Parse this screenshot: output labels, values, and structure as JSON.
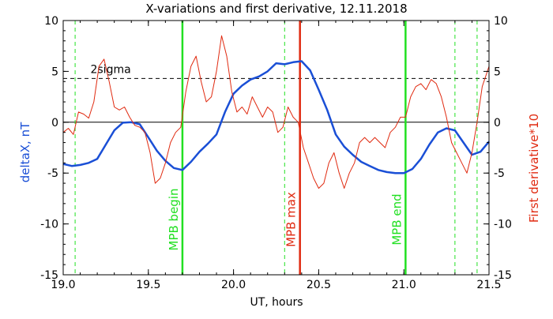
{
  "chart_data": {
    "type": "line",
    "title": "X-variations and first derivative, 12.11.2018",
    "xlabel": "UT, hours",
    "ylabel_left": "deltaX, nT",
    "ylabel_right": "First derivative*10",
    "xlim": [
      19.0,
      21.5
    ],
    "ylim": [
      -15,
      10
    ],
    "x_ticks": [
      "19.0",
      "19.5",
      "20.0",
      "20.5",
      "21.0",
      "21.5"
    ],
    "y_ticks": [
      "-15",
      "-10",
      "-5",
      "0",
      "5",
      "10"
    ],
    "grid": false,
    "colors": {
      "deltaX": "#1a4fd6",
      "derivative": "#e02a10",
      "mpb": "#22e022",
      "mpb_max": "#e02a10",
      "zero": "#000000",
      "sigma": "#000000",
      "ylabel_left": "#1a4fd6",
      "ylabel_right": "#e02a10"
    },
    "sigma_label": "2sigma",
    "sigma_level": 4.3,
    "zero_level": 0,
    "vertical_lines": [
      {
        "x": 19.7,
        "label": "MPB begin",
        "style": "solid",
        "color": "#22e022"
      },
      {
        "x": 20.39,
        "label": "MPB max",
        "style": "solid",
        "color": "#e02a10"
      },
      {
        "x": 21.01,
        "label": "MPB end",
        "style": "solid",
        "color": "#22e022"
      },
      {
        "x": 19.07,
        "label": "",
        "style": "dashed",
        "color": "#22e022"
      },
      {
        "x": 20.3,
        "label": "",
        "style": "dashed",
        "color": "#22e022"
      },
      {
        "x": 21.3,
        "label": "",
        "style": "dashed",
        "color": "#22e022"
      },
      {
        "x": 21.43,
        "label": "",
        "style": "dashed",
        "color": "#22e022"
      }
    ],
    "series": [
      {
        "key": "deltaX",
        "x": [
          19.0,
          19.05,
          19.1,
          19.15,
          19.2,
          19.25,
          19.3,
          19.35,
          19.4,
          19.45,
          19.5,
          19.55,
          19.6,
          19.65,
          19.7,
          19.75,
          19.8,
          19.85,
          19.9,
          19.95,
          20.0,
          20.05,
          20.1,
          20.15,
          20.2,
          20.25,
          20.3,
          20.35,
          20.4,
          20.45,
          20.5,
          20.55,
          20.6,
          20.65,
          20.7,
          20.75,
          20.8,
          20.85,
          20.9,
          20.95,
          21.0,
          21.05,
          21.1,
          21.15,
          21.2,
          21.25,
          21.3,
          21.35,
          21.4,
          21.45,
          21.5
        ],
        "values": [
          -4.1,
          -4.3,
          -4.2,
          -4.0,
          -3.6,
          -2.2,
          -0.8,
          -0.05,
          0.0,
          -0.2,
          -1.5,
          -2.8,
          -3.8,
          -4.5,
          -4.7,
          -3.9,
          -2.9,
          -2.1,
          -1.2,
          1.0,
          2.8,
          3.6,
          4.2,
          4.5,
          5.0,
          5.8,
          5.7,
          5.9,
          6.0,
          5.1,
          3.2,
          1.2,
          -1.2,
          -2.4,
          -3.2,
          -3.9,
          -4.3,
          -4.7,
          -4.9,
          -5.0,
          -5.0,
          -4.6,
          -3.6,
          -2.2,
          -1.0,
          -0.6,
          -0.8,
          -2.0,
          -3.2,
          -2.9,
          -1.9
        ]
      },
      {
        "key": "derivative",
        "x": [
          19.0,
          19.03,
          19.06,
          19.09,
          19.12,
          19.15,
          19.18,
          19.21,
          19.24,
          19.27,
          19.3,
          19.33,
          19.36,
          19.39,
          19.42,
          19.45,
          19.48,
          19.51,
          19.54,
          19.57,
          19.6,
          19.63,
          19.66,
          19.69,
          19.72,
          19.75,
          19.78,
          19.81,
          19.84,
          19.87,
          19.9,
          19.93,
          19.96,
          19.99,
          20.02,
          20.05,
          20.08,
          20.11,
          20.14,
          20.17,
          20.2,
          20.23,
          20.26,
          20.29,
          20.32,
          20.35,
          20.38,
          20.41,
          20.44,
          20.47,
          20.5,
          20.53,
          20.56,
          20.59,
          20.62,
          20.65,
          20.68,
          20.71,
          20.74,
          20.77,
          20.8,
          20.83,
          20.86,
          20.89,
          20.92,
          20.95,
          20.98,
          21.01,
          21.04,
          21.07,
          21.1,
          21.13,
          21.16,
          21.19,
          21.22,
          21.25,
          21.28,
          21.31,
          21.34,
          21.37,
          21.4,
          21.43,
          21.46,
          21.5
        ],
        "values": [
          -1.0,
          -0.6,
          -1.2,
          1.0,
          0.8,
          0.4,
          2.0,
          5.5,
          6.2,
          4.0,
          1.5,
          1.2,
          1.5,
          0.5,
          -0.3,
          -0.5,
          -1.0,
          -3.0,
          -6.0,
          -5.5,
          -4.0,
          -2.0,
          -1.0,
          -0.5,
          3.0,
          5.5,
          6.5,
          4.0,
          2.0,
          2.5,
          5.0,
          8.5,
          6.5,
          3.0,
          1.0,
          1.5,
          0.8,
          2.5,
          1.5,
          0.5,
          1.5,
          1.0,
          -1.0,
          -0.5,
          1.5,
          0.5,
          0.0,
          -2.5,
          -4.0,
          -5.5,
          -6.5,
          -6.0,
          -4.0,
          -3.0,
          -5.0,
          -6.5,
          -5.0,
          -4.0,
          -2.0,
          -1.5,
          -2.0,
          -1.5,
          -2.0,
          -2.5,
          -1.0,
          -0.5,
          0.5,
          0.5,
          2.5,
          3.5,
          3.8,
          3.2,
          4.2,
          3.8,
          2.5,
          0.5,
          -2.0,
          -3.0,
          -4.0,
          -5.0,
          -3.0,
          0.0,
          3.5,
          5.5
        ]
      }
    ]
  }
}
